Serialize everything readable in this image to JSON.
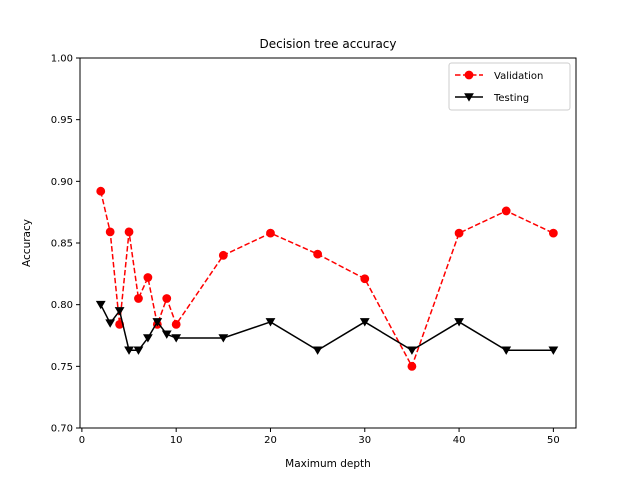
{
  "chart_data": {
    "type": "line",
    "title": "Decision tree accuracy",
    "xlabel": "Maximum depth",
    "ylabel": "Accuracy",
    "xlim": [
      -0.2,
      52.4
    ],
    "ylim": [
      0.7,
      1.0
    ],
    "xticks": [
      0,
      10,
      20,
      30,
      40,
      50
    ],
    "yticks": [
      0.7,
      0.75,
      0.8,
      0.85,
      0.9,
      0.95,
      1.0
    ],
    "grid": false,
    "legend_position": "top-right",
    "x": [
      2,
      3,
      4,
      5,
      6,
      7,
      8,
      9,
      10,
      15,
      20,
      25,
      30,
      35,
      40,
      45,
      50
    ],
    "series": [
      {
        "name": "Validation",
        "color": "#ff0000",
        "line_style": "dashed",
        "marker": "circle",
        "values": [
          0.892,
          0.859,
          0.784,
          0.859,
          0.805,
          0.822,
          0.784,
          0.805,
          0.784,
          0.84,
          0.858,
          0.841,
          0.821,
          0.75,
          0.858,
          0.876,
          0.858
        ]
      },
      {
        "name": "Testing",
        "color": "#000000",
        "line_style": "solid",
        "marker": "triangle-down",
        "values": [
          0.8,
          0.785,
          0.795,
          0.763,
          0.763,
          0.773,
          0.786,
          0.776,
          0.773,
          0.773,
          0.786,
          0.763,
          0.786,
          0.763,
          0.786,
          0.763,
          0.763
        ]
      }
    ]
  }
}
